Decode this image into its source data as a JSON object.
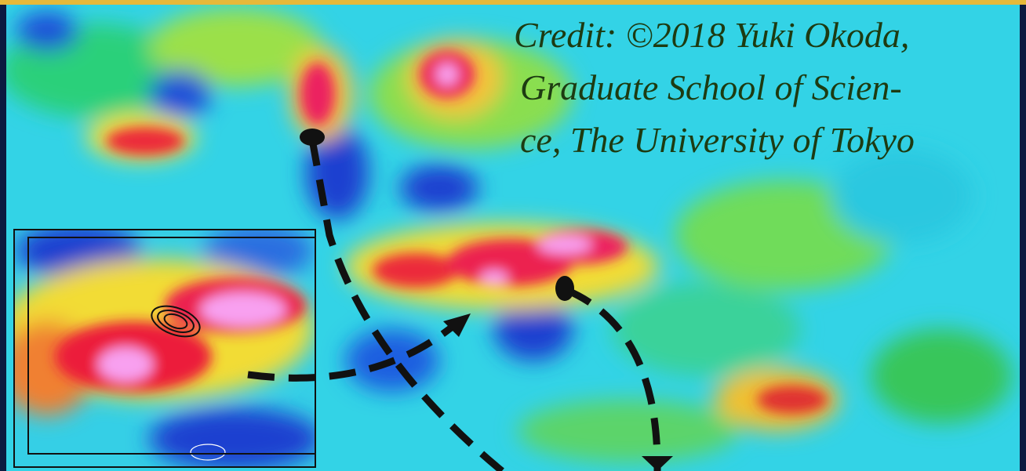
{
  "credit": {
    "lines": [
      "Credit: ©2018 Yuki Okoda,",
      "Graduate School of Scien-",
      "ce, The University of Tokyo"
    ]
  }
}
